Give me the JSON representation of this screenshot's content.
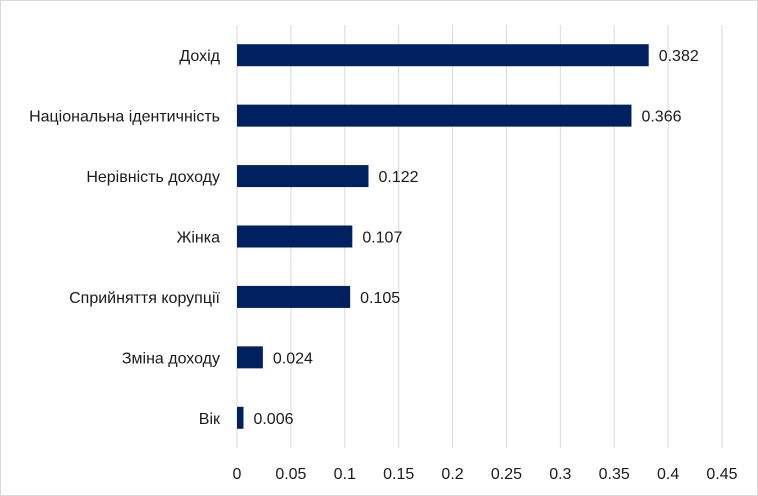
{
  "chart_data": {
    "type": "bar",
    "orientation": "horizontal",
    "title": "",
    "xlabel": "",
    "ylabel": "",
    "categories": [
      "Дохід",
      "Національна ідентичність",
      "Нерівність доходу",
      "Жінка",
      "Сприйняття корупції",
      "Зміна доходу",
      "Вік"
    ],
    "values": [
      0.382,
      0.366,
      0.122,
      0.107,
      0.105,
      0.024,
      0.006
    ],
    "data_labels": [
      "0.382",
      "0.366",
      "0.122",
      "0.107",
      "0.105",
      "0.024",
      "0.006"
    ],
    "xlim": [
      0,
      0.45
    ],
    "xticks": [
      "0",
      "0.05",
      "0.1",
      "0.15",
      "0.2",
      "0.25",
      "0.3",
      "0.35",
      "0.4",
      "0.45"
    ],
    "grid": "vertical",
    "legend": "none",
    "bar_color": "#002060",
    "grid_color": "#d9d9d9"
  }
}
